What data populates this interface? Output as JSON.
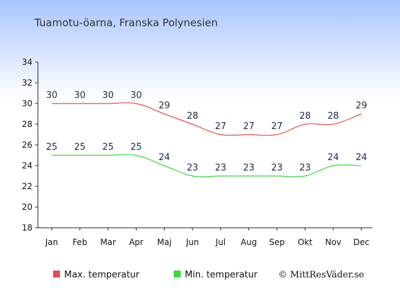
{
  "chart_data": {
    "type": "line",
    "title": "Tuamotu-öarna, Franska Polynesien",
    "categories": [
      "Jan",
      "Feb",
      "Mar",
      "Apr",
      "Maj",
      "Jun",
      "Jul",
      "Aug",
      "Sep",
      "Okt",
      "Nov",
      "Dec"
    ],
    "series": [
      {
        "name": "Max. temperatur",
        "color": "#e84a4a",
        "values": [
          30,
          30,
          30,
          30,
          29,
          28,
          27,
          27,
          27,
          28,
          28,
          29
        ]
      },
      {
        "name": "Min. temperatur",
        "color": "#33dd33",
        "values": [
          25,
          25,
          25,
          25,
          24,
          23,
          23,
          23,
          23,
          23,
          24,
          24
        ]
      }
    ],
    "yticks": [
      18,
      20,
      22,
      24,
      26,
      28,
      30,
      32,
      34
    ],
    "ylim": [
      18,
      34
    ],
    "grid": false,
    "legend_position": "bottom-left"
  },
  "copyright": "© MittResVäder.se",
  "colors": {
    "background_top": "#a9c6ff",
    "background_bottom": "#ffffff"
  }
}
